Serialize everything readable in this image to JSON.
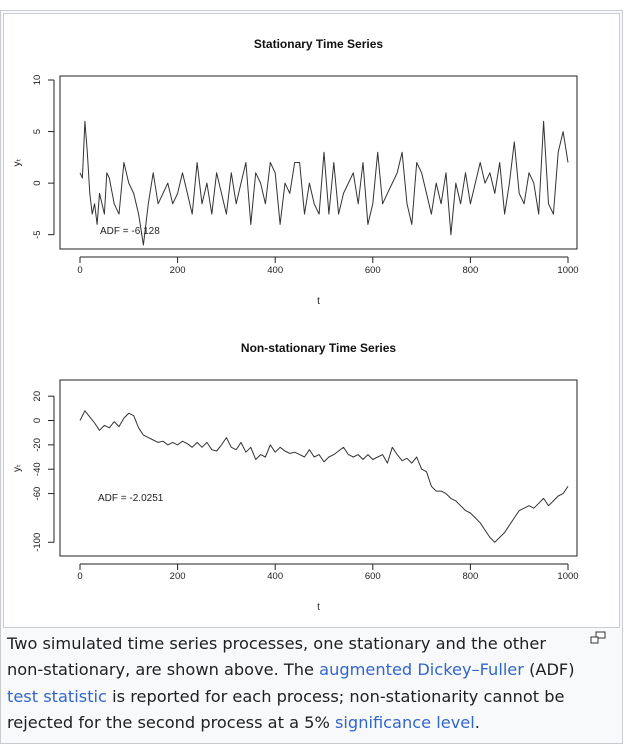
{
  "chart_data": [
    {
      "type": "line",
      "title": "Stationary Time Series",
      "xlabel": "t",
      "ylabel": "yₜ",
      "xlim": [
        0,
        1000
      ],
      "ylim": [
        -6,
        10
      ],
      "xticks": [
        0,
        200,
        400,
        600,
        800,
        1000
      ],
      "yticks": [
        -5,
        0,
        5,
        10
      ],
      "annotation": "ADF = -6.128",
      "grid": false,
      "series": [
        {
          "x": [
            0,
            5,
            10,
            15,
            20,
            25,
            30,
            35,
            40,
            45,
            50,
            55,
            60,
            70,
            80,
            90,
            100,
            110,
            120,
            130,
            140,
            150,
            160,
            170,
            180,
            190,
            200,
            210,
            220,
            230,
            240,
            250,
            260,
            270,
            280,
            290,
            300,
            310,
            320,
            330,
            340,
            350,
            360,
            370,
            380,
            390,
            400,
            410,
            420,
            430,
            440,
            450,
            460,
            470,
            480,
            490,
            500,
            510,
            520,
            530,
            540,
            550,
            560,
            570,
            580,
            590,
            600,
            610,
            620,
            630,
            640,
            650,
            660,
            670,
            680,
            690,
            700,
            710,
            720,
            730,
            740,
            750,
            760,
            770,
            780,
            790,
            800,
            810,
            820,
            830,
            840,
            850,
            860,
            870,
            880,
            890,
            900,
            910,
            920,
            930,
            940,
            950,
            960,
            970,
            980,
            990,
            1000
          ],
          "y": [
            1,
            0.5,
            6,
            3,
            -1,
            -3,
            -2,
            -4,
            -1,
            -2,
            -3,
            1,
            0.5,
            -2,
            -3,
            2,
            0,
            -1,
            -3,
            -6,
            -2,
            1,
            -2,
            -1,
            0,
            -2,
            -1,
            1,
            -1,
            -3,
            2,
            -2,
            0,
            -3,
            1,
            -1,
            -3,
            1,
            -2,
            0,
            2,
            -4,
            1,
            0,
            -2,
            2,
            1,
            -4,
            0,
            -1,
            2,
            2,
            -3,
            0,
            -2,
            -3,
            3,
            -3,
            2,
            -3,
            -1,
            0,
            1,
            -2,
            2,
            -4,
            -2,
            3,
            -2,
            -1,
            0,
            1,
            3,
            -2,
            -4,
            2,
            1,
            -1,
            -3,
            0,
            -2,
            1,
            -5,
            0,
            -2,
            1,
            -2,
            0,
            2,
            0,
            1,
            -1,
            2,
            -3,
            0,
            4,
            -1,
            -2,
            1,
            0,
            -3,
            6,
            -2,
            -3,
            3,
            5,
            2
          ]
        }
      ]
    },
    {
      "type": "line",
      "title": "Non-stationary Time Series",
      "xlabel": "t",
      "ylabel": "yₜ",
      "xlim": [
        0,
        1000
      ],
      "ylim": [
        -108,
        30
      ],
      "xticks": [
        0,
        200,
        400,
        600,
        800,
        1000
      ],
      "yticks": [
        -100,
        -60,
        -40,
        -20,
        0,
        20
      ],
      "annotation": "ADF = -2.0251",
      "grid": false,
      "series": [
        {
          "x": [
            0,
            10,
            20,
            30,
            40,
            50,
            60,
            70,
            80,
            90,
            100,
            110,
            120,
            130,
            140,
            150,
            160,
            170,
            180,
            190,
            200,
            210,
            220,
            230,
            240,
            250,
            260,
            270,
            280,
            290,
            300,
            310,
            320,
            330,
            340,
            350,
            360,
            370,
            380,
            390,
            400,
            410,
            420,
            430,
            440,
            450,
            460,
            470,
            480,
            490,
            500,
            510,
            520,
            530,
            540,
            550,
            560,
            570,
            580,
            590,
            600,
            610,
            620,
            630,
            640,
            650,
            660,
            670,
            680,
            690,
            700,
            710,
            720,
            730,
            740,
            750,
            760,
            770,
            780,
            790,
            800,
            810,
            820,
            830,
            840,
            850,
            860,
            870,
            880,
            890,
            900,
            910,
            920,
            930,
            940,
            950,
            960,
            970,
            980,
            990,
            1000
          ],
          "y": [
            0,
            8,
            3,
            -2,
            -8,
            -4,
            -6,
            -1,
            -5,
            2,
            6,
            4,
            -6,
            -12,
            -14,
            -16,
            -18,
            -17,
            -20,
            -18,
            -20,
            -17,
            -19,
            -22,
            -18,
            -22,
            -18,
            -24,
            -25,
            -20,
            -14,
            -22,
            -24,
            -18,
            -26,
            -22,
            -32,
            -28,
            -30,
            -20,
            -26,
            -22,
            -25,
            -27,
            -26,
            -28,
            -30,
            -24,
            -30,
            -28,
            -34,
            -30,
            -28,
            -25,
            -22,
            -28,
            -30,
            -28,
            -32,
            -28,
            -32,
            -30,
            -28,
            -35,
            -22,
            -28,
            -33,
            -31,
            -35,
            -30,
            -40,
            -42,
            -54,
            -58,
            -58,
            -60,
            -64,
            -66,
            -70,
            -74,
            -76,
            -80,
            -84,
            -90,
            -96,
            -100,
            -96,
            -92,
            -86,
            -80,
            -74,
            -72,
            -70,
            -72,
            -68,
            -64,
            -70,
            -66,
            -62,
            -60,
            -54
          ]
        }
      ]
    }
  ],
  "caption": {
    "t1": "Two simulated time series processes, one stationary and the other non-stationary, are shown above. The ",
    "link1": "augmented Dickey–Fuller",
    "t2": " (ADF) ",
    "link2": "test statistic",
    "t3": " is reported for each process; non-stationarity cannot be rejected for the second process at a 5% ",
    "link3": "significance level",
    "t4": "."
  },
  "icons": {
    "magnify": "magnify-clip-icon"
  }
}
